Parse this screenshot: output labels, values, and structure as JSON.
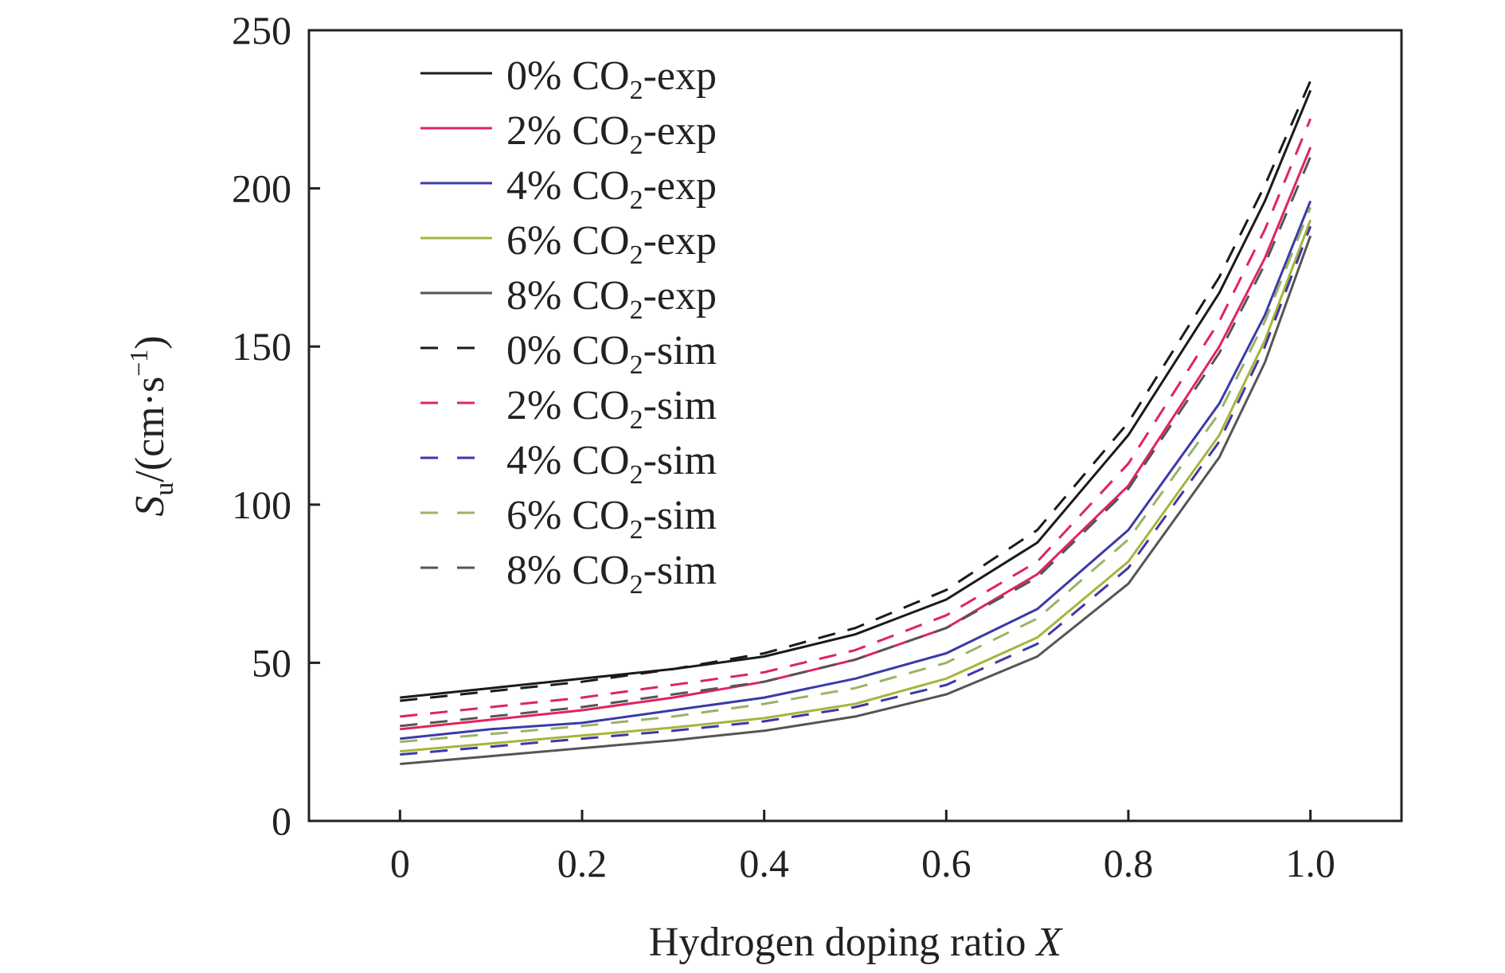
{
  "chart_data": {
    "type": "line",
    "title": "",
    "xlabel": "Hydrogen doping ratio",
    "xlabel_var": "X",
    "ylabel": {
      "var": "S",
      "sub": "u",
      "unit": "/(cm·s",
      "exp": "−1",
      "close": ")"
    },
    "xlim": [
      -0.1,
      1.1
    ],
    "ylim": [
      0,
      250
    ],
    "x_ticks": [
      0,
      0.2,
      0.4,
      0.6,
      0.8,
      1.0
    ],
    "x_tick_labels": [
      "0",
      "0.2",
      "0.4",
      "0.6",
      "0.8",
      "1.0"
    ],
    "y_ticks": [
      0,
      50,
      100,
      150,
      200,
      250
    ],
    "y_tick_labels": [
      "0",
      "50",
      "100",
      "150",
      "200",
      "250"
    ],
    "grid": false,
    "legend_position": "top-left",
    "x": [
      0,
      0.1,
      0.2,
      0.3,
      0.4,
      0.5,
      0.6,
      0.7,
      0.8,
      0.9,
      0.95,
      1.0
    ],
    "series": [
      {
        "name": "0% CO2-exp",
        "name_parts": {
          "pre": "0% CO",
          "sub": "2",
          "post": "-exp"
        },
        "style": "solid",
        "color": "#1a1a1a",
        "values": [
          39,
          42,
          45,
          48,
          52,
          59,
          70,
          88,
          122,
          167,
          196,
          231
        ]
      },
      {
        "name": "2% CO2-exp",
        "name_parts": {
          "pre": "2% CO",
          "sub": "2",
          "post": "-exp"
        },
        "style": "solid",
        "color": "#e0245e",
        "values": [
          29,
          32,
          35,
          39,
          44,
          51,
          61,
          78,
          106,
          150,
          178,
          213
        ]
      },
      {
        "name": "4% CO2-exp",
        "name_parts": {
          "pre": "4% CO",
          "sub": "2",
          "post": "-exp"
        },
        "style": "solid",
        "color": "#3a3aa8",
        "values": [
          26,
          29,
          31,
          35,
          39,
          45,
          53,
          67,
          92,
          132,
          160,
          196
        ]
      },
      {
        "name": "6% CO2-exp",
        "name_parts": {
          "pre": "6% CO",
          "sub": "2",
          "post": "-exp"
        },
        "style": "solid",
        "color": "#a8b43c",
        "values": [
          22,
          24.5,
          27,
          29.5,
          32.5,
          37,
          45,
          58,
          82,
          122,
          152,
          190
        ]
      },
      {
        "name": "8% CO2-exp",
        "name_parts": {
          "pre": "8% CO",
          "sub": "2",
          "post": "-exp"
        },
        "style": "solid",
        "color": "#555555",
        "values": [
          18,
          20.5,
          23,
          25.5,
          28.5,
          33,
          40,
          52,
          75,
          115,
          145,
          185
        ]
      },
      {
        "name": "0% CO2-sim",
        "name_parts": {
          "pre": "0% CO",
          "sub": "2",
          "post": "-sim"
        },
        "style": "dashed",
        "color": "#1a1a1a",
        "values": [
          38,
          41,
          44,
          48,
          53,
          61,
          73,
          92,
          126,
          172,
          201,
          234
        ]
      },
      {
        "name": "2% CO2-sim",
        "name_parts": {
          "pre": "2% CO",
          "sub": "2",
          "post": "-sim"
        },
        "style": "dashed",
        "color": "#e0245e",
        "values": [
          33,
          36,
          39,
          43,
          47,
          54,
          65,
          82,
          113,
          158,
          187,
          222
        ]
      },
      {
        "name": "4% CO2-sim",
        "name_parts": {
          "pre": "4% CO",
          "sub": "2",
          "post": "-sim"
        },
        "style": "dashed",
        "color": "#3a3aa8",
        "values": [
          21,
          23.5,
          26,
          28.5,
          31.5,
          36,
          43,
          56,
          80,
          120,
          150,
          188
        ]
      },
      {
        "name": "6% CO2-sim",
        "name_parts": {
          "pre": "6% CO",
          "sub": "2",
          "post": "-sim"
        },
        "style": "dashed",
        "color": "#99b366",
        "values": [
          25,
          27.5,
          30,
          33,
          37,
          42,
          50,
          64,
          89,
          129,
          158,
          194
        ]
      },
      {
        "name": "8% CO2-sim",
        "name_parts": {
          "pre": "8% CO",
          "sub": "2",
          "post": "-sim"
        },
        "style": "dashed",
        "color": "#555555",
        "values": [
          30,
          33,
          36,
          40,
          44,
          51,
          61,
          77,
          105,
          148,
          176,
          210
        ]
      }
    ]
  }
}
